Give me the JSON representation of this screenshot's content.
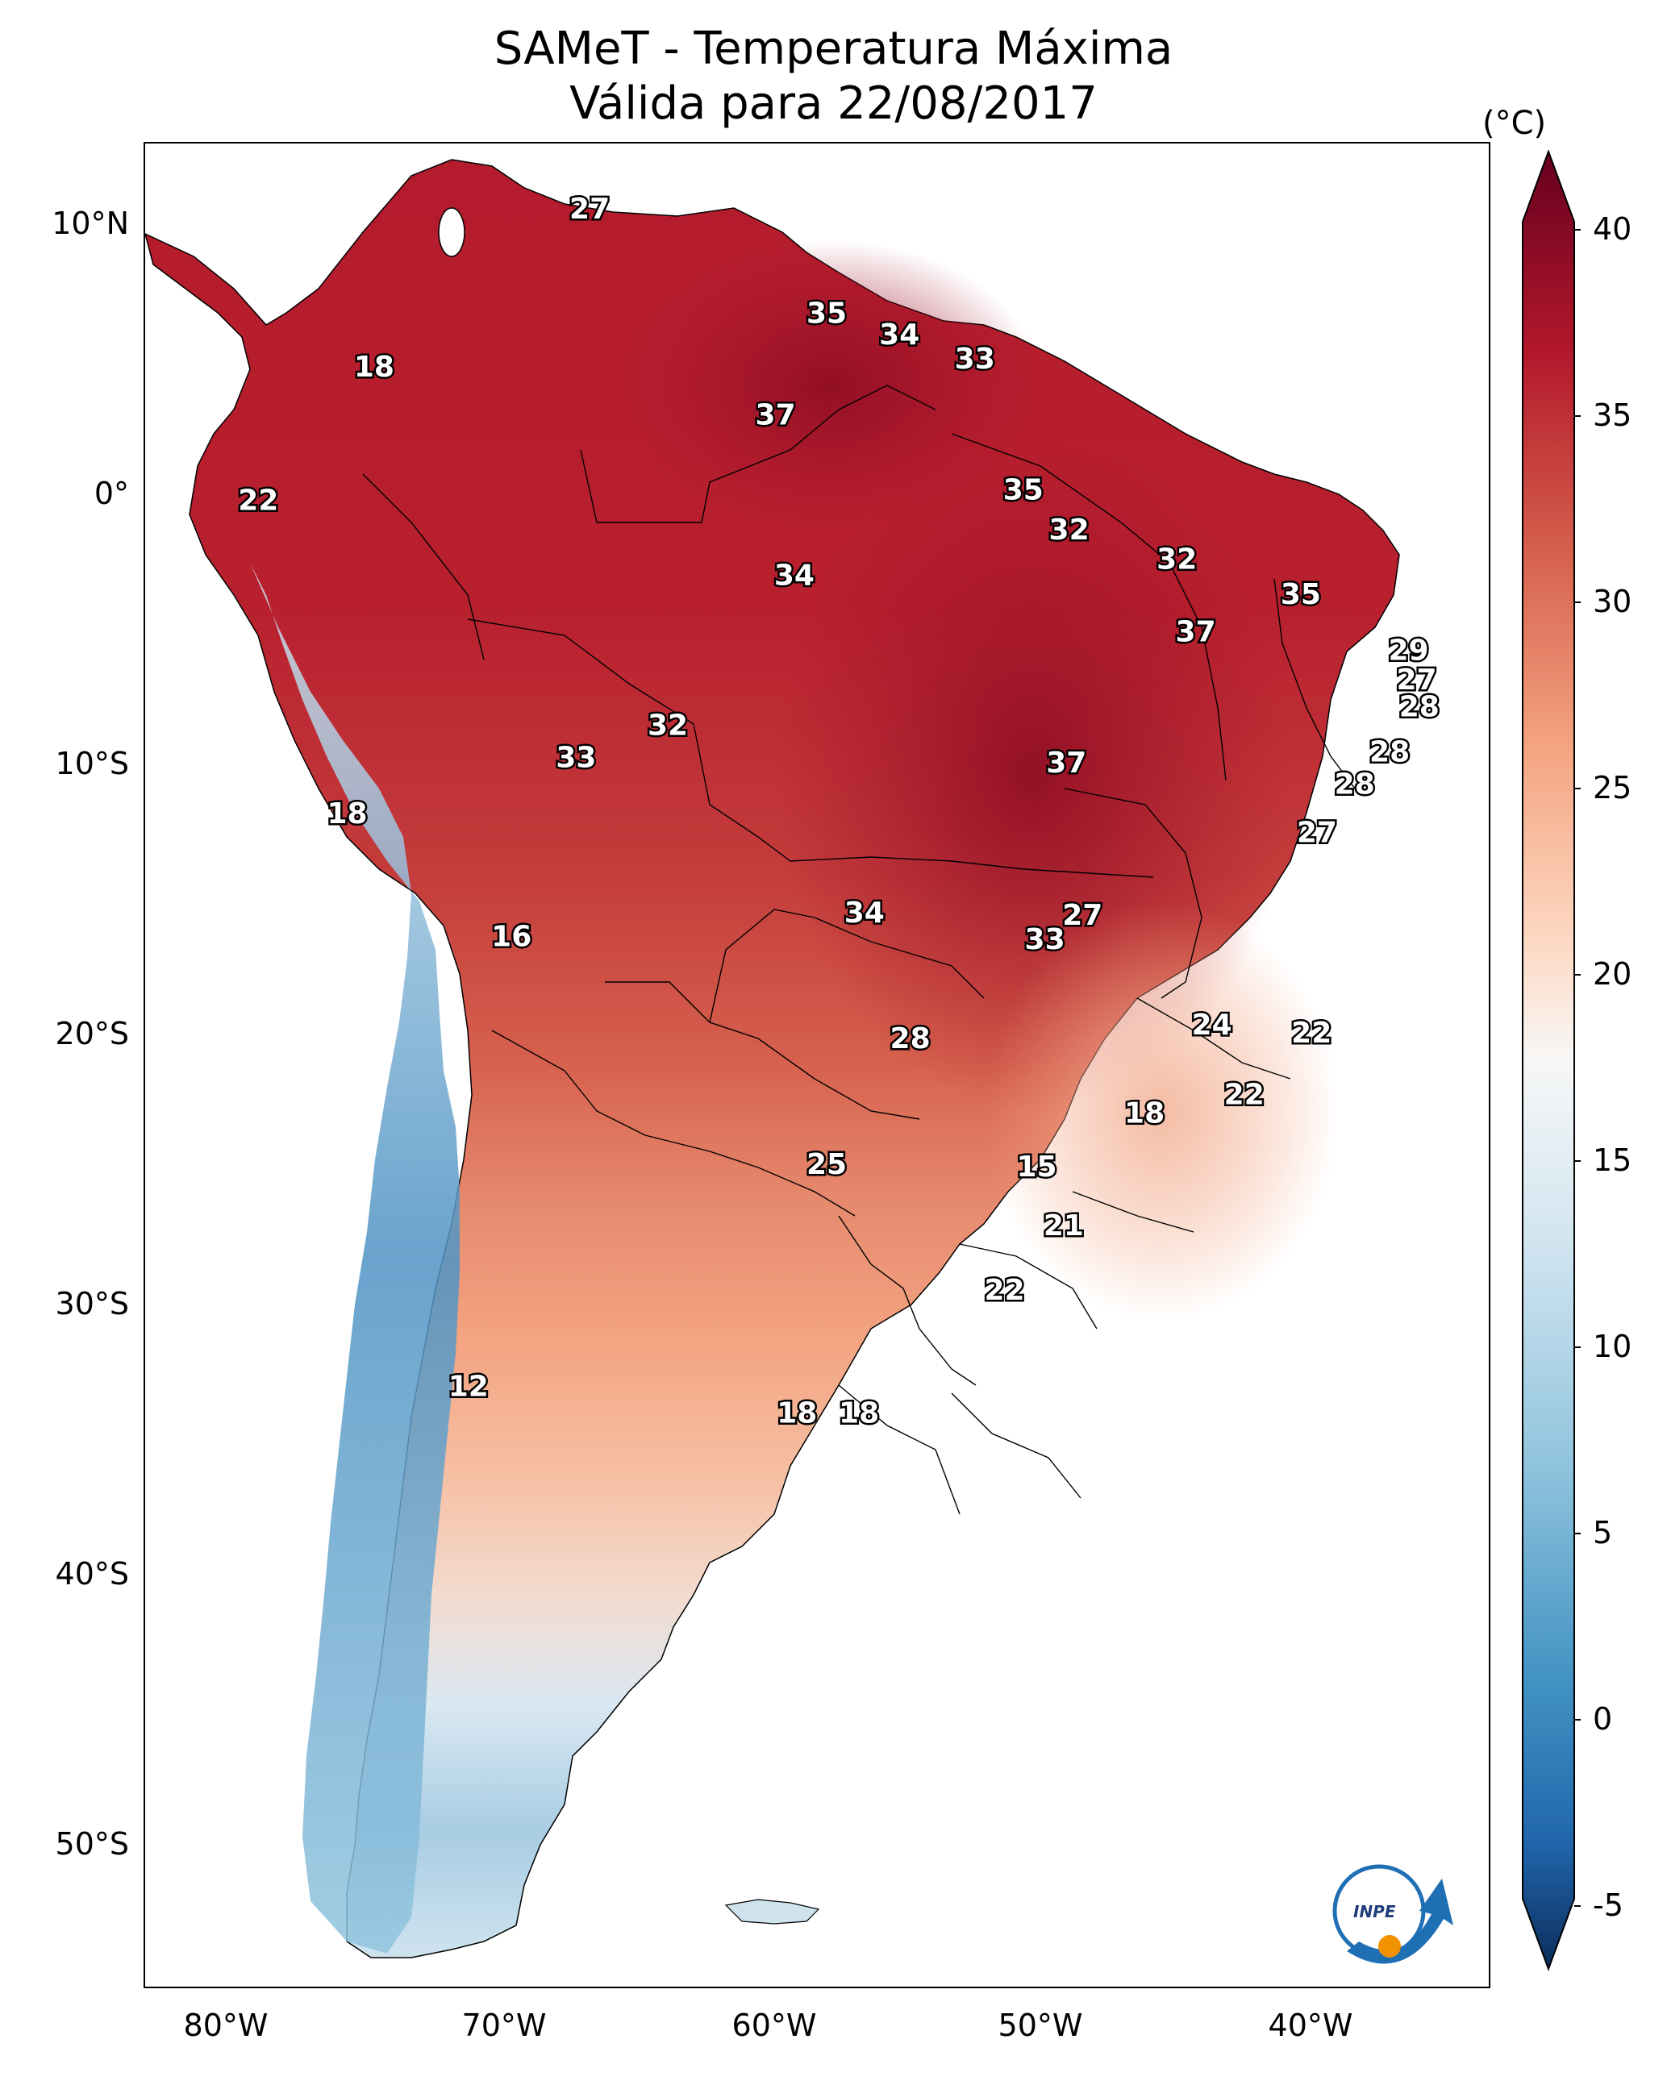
{
  "title": {
    "line1": "SAMeT - Temperatura Máxima",
    "line2": "Válida para 22/08/2017"
  },
  "axes": {
    "lat_labels": [
      "10°N",
      "0°",
      "10°S",
      "20°S",
      "30°S",
      "40°S",
      "50°S"
    ],
    "lon_labels": [
      "80°W",
      "70°W",
      "60°W",
      "50°W",
      "40°W"
    ]
  },
  "colorbar": {
    "unit": "(°C)",
    "ticks": [
      "40",
      "35",
      "30",
      "25",
      "20",
      "15",
      "10",
      "5",
      "0",
      "-5"
    ],
    "range": [
      -5,
      40
    ],
    "colors": [
      "#0b2d5c",
      "#2166ac",
      "#4393c3",
      "#92c5de",
      "#d1e5f0",
      "#f7f7f7",
      "#fddbc7",
      "#f4a582",
      "#d6604d",
      "#b2182b",
      "#67001f"
    ]
  },
  "map_data": {
    "extent": {
      "lon": [
        -83,
        -33
      ],
      "lat": [
        -56,
        13
      ]
    },
    "contour_labels": [
      {
        "t": "27",
        "lon": -66.5,
        "lat": 10.5
      },
      {
        "t": "35",
        "lon": -57.7,
        "lat": 6.6
      },
      {
        "t": "34",
        "lon": -55.0,
        "lat": 5.8
      },
      {
        "t": "33",
        "lon": -52.2,
        "lat": 4.9
      },
      {
        "t": "18",
        "lon": -74.5,
        "lat": 4.6
      },
      {
        "t": "37",
        "lon": -59.6,
        "lat": 2.8
      },
      {
        "t": "22",
        "lon": -78.8,
        "lat": -0.4
      },
      {
        "t": "35",
        "lon": -50.4,
        "lat": 0.0
      },
      {
        "t": "32",
        "lon": -48.7,
        "lat": -1.5
      },
      {
        "t": "32",
        "lon": -44.7,
        "lat": -2.6
      },
      {
        "t": "34",
        "lon": -58.9,
        "lat": -3.2
      },
      {
        "t": "35",
        "lon": -40.1,
        "lat": -3.9
      },
      {
        "t": "37",
        "lon": -44.0,
        "lat": -5.3
      },
      {
        "t": "29",
        "lon": -36.1,
        "lat": -6.0
      },
      {
        "t": "27",
        "lon": -35.8,
        "lat": -7.1
      },
      {
        "t": "28",
        "lon": -35.7,
        "lat": -8.1
      },
      {
        "t": "32",
        "lon": -63.6,
        "lat": -8.8
      },
      {
        "t": "28",
        "lon": -36.8,
        "lat": -9.8
      },
      {
        "t": "33",
        "lon": -67.0,
        "lat": -10.0
      },
      {
        "t": "37",
        "lon": -48.8,
        "lat": -10.2
      },
      {
        "t": "28",
        "lon": -38.1,
        "lat": -11.0
      },
      {
        "t": "18",
        "lon": -75.5,
        "lat": -12.1
      },
      {
        "t": "27",
        "lon": -39.5,
        "lat": -12.8
      },
      {
        "t": "34",
        "lon": -56.3,
        "lat": -15.8
      },
      {
        "t": "27",
        "lon": -48.2,
        "lat": -15.9
      },
      {
        "t": "16",
        "lon": -69.4,
        "lat": -16.7
      },
      {
        "t": "33",
        "lon": -49.6,
        "lat": -16.8
      },
      {
        "t": "24",
        "lon": -43.4,
        "lat": -20.0
      },
      {
        "t": "22",
        "lon": -39.7,
        "lat": -20.3
      },
      {
        "t": "28",
        "lon": -54.6,
        "lat": -20.5
      },
      {
        "t": "22",
        "lon": -42.2,
        "lat": -22.6
      },
      {
        "t": "18",
        "lon": -45.9,
        "lat": -23.3
      },
      {
        "t": "25",
        "lon": -57.7,
        "lat": -25.2
      },
      {
        "t": "15",
        "lon": -49.9,
        "lat": -25.3
      },
      {
        "t": "21",
        "lon": -48.9,
        "lat": -27.5
      },
      {
        "t": "22",
        "lon": -51.1,
        "lat": -29.9
      },
      {
        "t": "12",
        "lon": -71.0,
        "lat": -33.5
      },
      {
        "t": "18",
        "lon": -58.8,
        "lat": -34.5
      },
      {
        "t": "18",
        "lon": -56.5,
        "lat": -34.5
      }
    ],
    "credit": "INPE"
  }
}
